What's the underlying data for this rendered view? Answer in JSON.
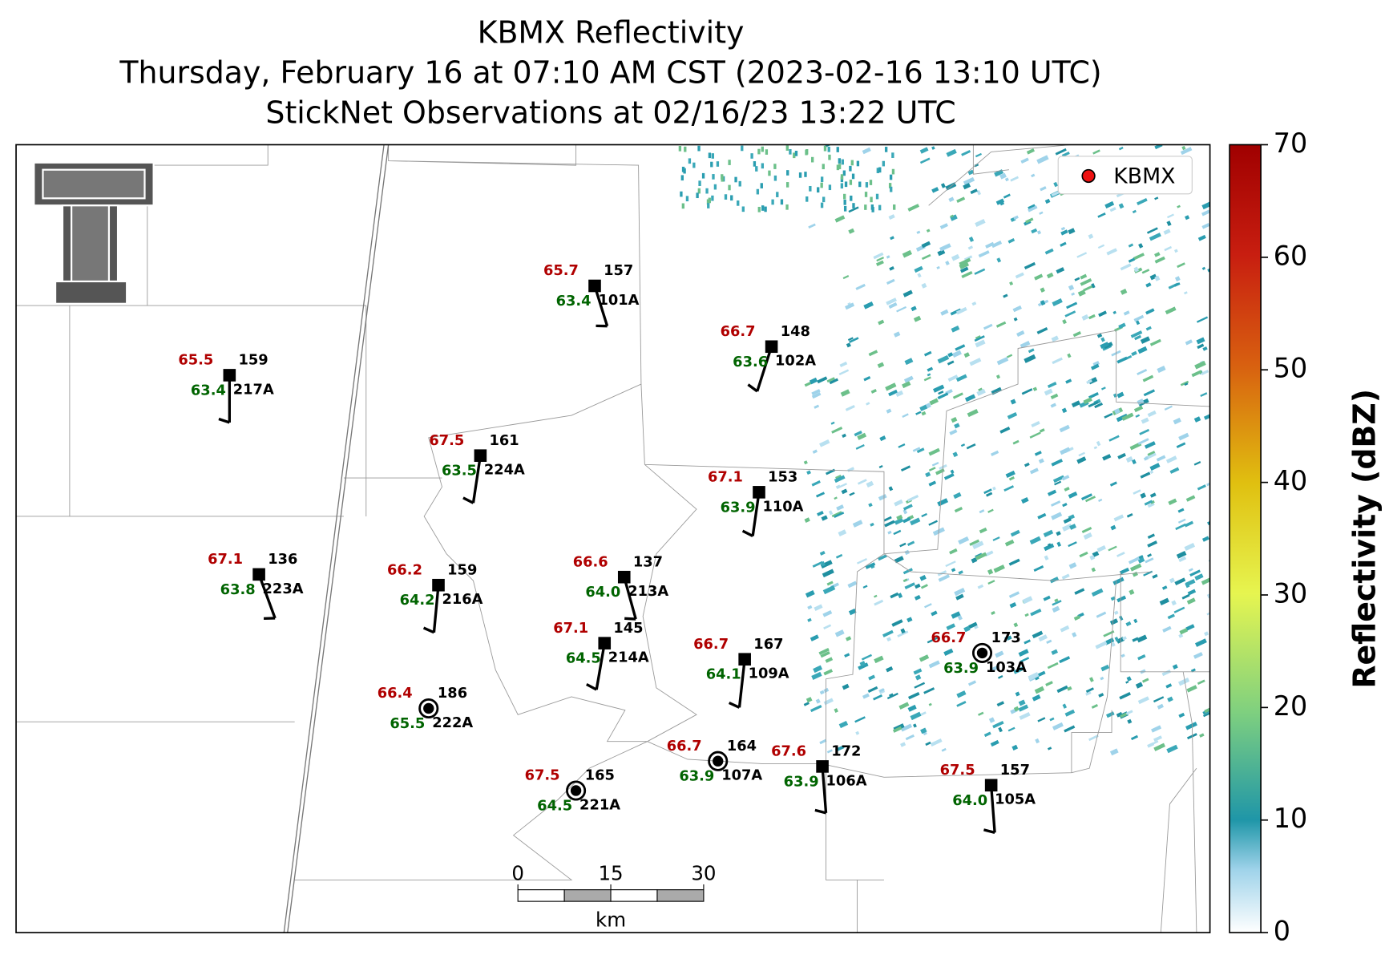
{
  "title": [
    "KBMX Reflectivity",
    "Thursday, February 16 at 07:10 AM CST (2023-02-16 13:10 UTC)",
    "StickNet Observations at 02/16/23 13:22 UTC"
  ],
  "legend": {
    "label": "KBMX"
  },
  "stations": [
    {
      "temperature": "65.7",
      "dewpoint": "63.4",
      "value": "157",
      "id": "101A"
    },
    {
      "temperature": "66.7",
      "dewpoint": "63.6",
      "value": "148",
      "id": "102A"
    },
    {
      "temperature": "65.5",
      "dewpoint": "63.4",
      "value": "159",
      "id": "217A"
    },
    {
      "temperature": "67.5",
      "dewpoint": "63.5",
      "value": "161",
      "id": "224A"
    },
    {
      "temperature": "67.1",
      "dewpoint": "63.9",
      "value": "153",
      "id": "110A"
    },
    {
      "temperature": "67.1",
      "dewpoint": "63.8",
      "value": "136",
      "id": "223A"
    },
    {
      "temperature": "66.2",
      "dewpoint": "64.2",
      "value": "159",
      "id": "216A"
    },
    {
      "temperature": "66.6",
      "dewpoint": "64.0",
      "value": "137",
      "id": "213A"
    },
    {
      "temperature": "67.1",
      "dewpoint": "64.5",
      "value": "145",
      "id": "214A"
    },
    {
      "temperature": "66.7",
      "dewpoint": "64.1",
      "value": "167",
      "id": "109A"
    },
    {
      "temperature": "66.7",
      "dewpoint": "63.9",
      "value": "173",
      "id": "103A"
    },
    {
      "temperature": "66.4",
      "dewpoint": "65.5",
      "value": "186",
      "id": "222A"
    },
    {
      "temperature": "66.7",
      "dewpoint": "63.9",
      "value": "164",
      "id": "107A"
    },
    {
      "temperature": "67.6",
      "dewpoint": "63.9",
      "value": "172",
      "id": "106A"
    },
    {
      "temperature": "67.5",
      "dewpoint": "64.5",
      "value": "165",
      "id": "221A"
    },
    {
      "temperature": "67.5",
      "dewpoint": "64.0",
      "value": "157",
      "id": "105A"
    }
  ],
  "scale_bar": {
    "ticks": [
      0,
      15,
      30
    ],
    "unit": "km"
  },
  "colorbar": {
    "label": "Reflectivity (dBZ)",
    "lim": [
      0,
      70
    ],
    "ticks": [
      0,
      10,
      20,
      30,
      40,
      50,
      60,
      70
    ]
  }
}
